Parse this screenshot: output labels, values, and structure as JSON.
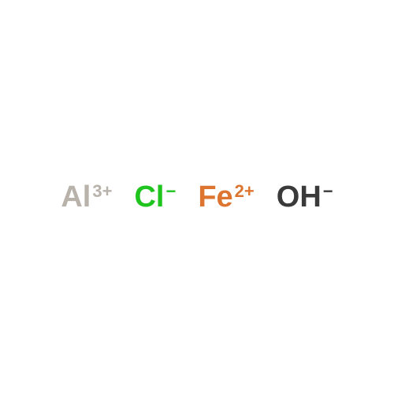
{
  "diagram": {
    "type": "chemical-ions",
    "background_color": "#ffffff",
    "font_family": "Arial, Helvetica, sans-serif",
    "symbol_fontsize": 38,
    "charge_fontsize": 22,
    "ion_gap": 28,
    "ions": [
      {
        "symbol": "Al",
        "charge": "3+",
        "color": "#b8b2ab"
      },
      {
        "symbol": "Cl",
        "charge": "−",
        "color": "#1fc41f"
      },
      {
        "symbol": "Fe",
        "charge": "2+",
        "color": "#dd7530"
      },
      {
        "symbol": "OH",
        "charge": "−",
        "color": "#3a3a3a"
      }
    ]
  }
}
